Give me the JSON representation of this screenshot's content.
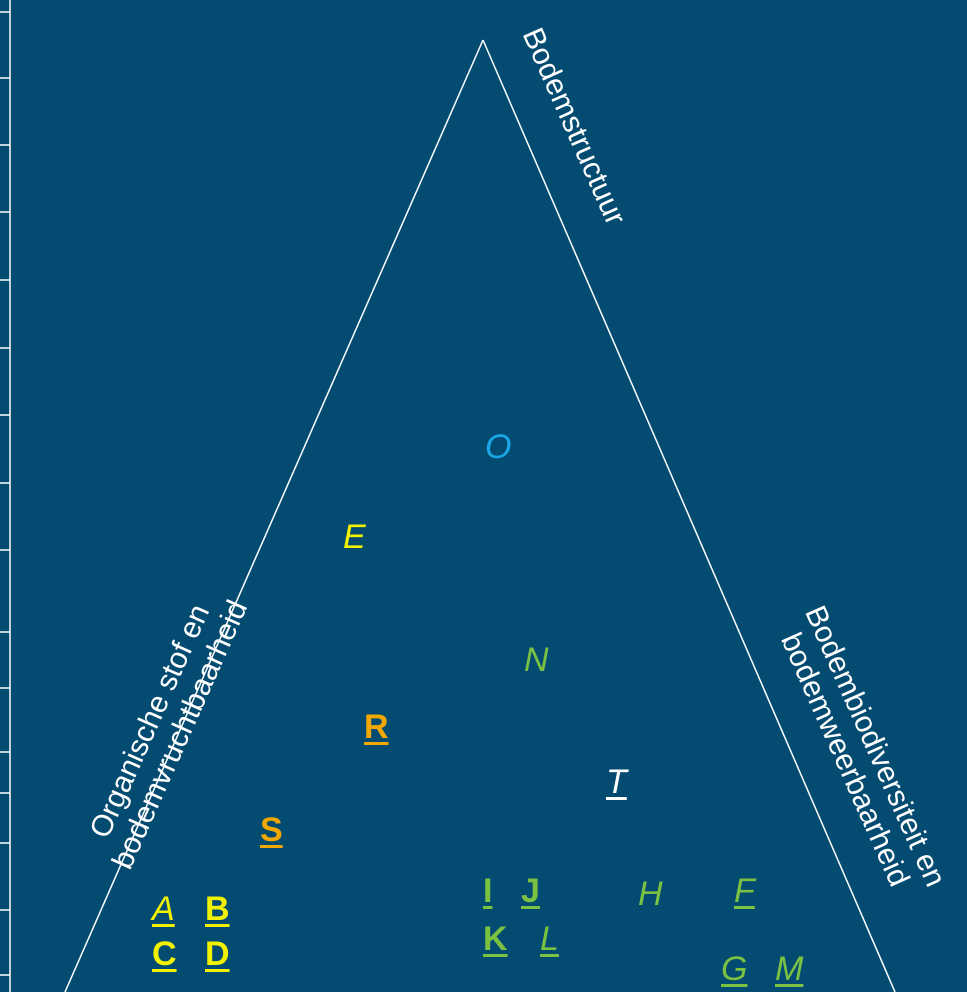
{
  "labels": {
    "top_right": "Bodemstructuur",
    "left_line1": "Organische stof en",
    "left_line2": "bodemvruchtbaarheid",
    "right_line1": "Bodembiodiversiteit en",
    "right_line2": "bodemweerbaarheid"
  },
  "colors": {
    "background": "#044b72",
    "line": "#ffffff",
    "yellow": "#f2f200",
    "orange": "#f2a800",
    "green": "#7cc242",
    "blue": "#1aa7e8",
    "white": "#ffffff"
  },
  "markers": [
    {
      "text": "O",
      "color": "blue"
    },
    {
      "text": "E",
      "color": "yellow"
    },
    {
      "text": "N",
      "color": "green"
    },
    {
      "text": "R",
      "color": "orange"
    },
    {
      "text": "T",
      "color": "white"
    },
    {
      "text": "S",
      "color": "orange"
    },
    {
      "text": "A",
      "color": "yellow"
    },
    {
      "text": "B",
      "color": "yellow"
    },
    {
      "text": "C",
      "color": "yellow"
    },
    {
      "text": "D",
      "color": "yellow"
    },
    {
      "text": "I",
      "color": "green"
    },
    {
      "text": "J",
      "color": "green"
    },
    {
      "text": "K",
      "color": "green"
    },
    {
      "text": "L",
      "color": "green"
    },
    {
      "text": "H",
      "color": "green"
    },
    {
      "text": "F",
      "color": "green"
    },
    {
      "text": "G",
      "color": "green"
    },
    {
      "text": "M",
      "color": "green"
    }
  ]
}
